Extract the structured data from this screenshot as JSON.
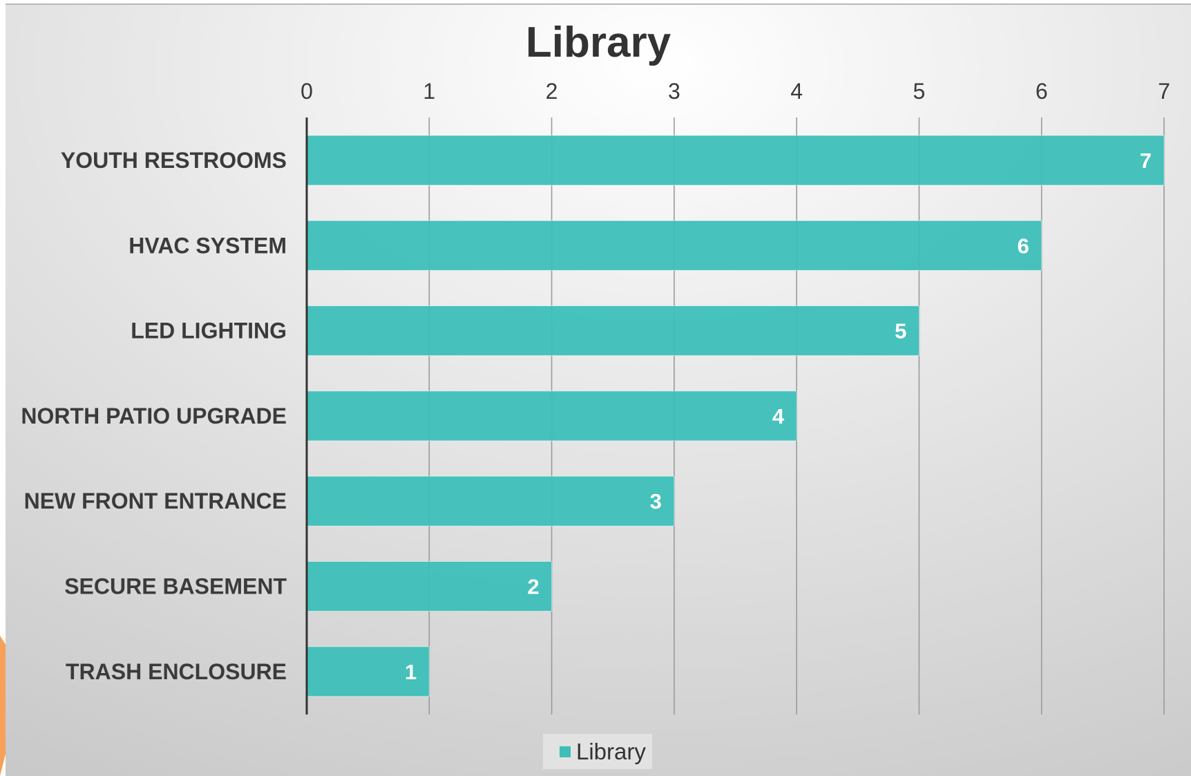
{
  "chart_data": {
    "type": "bar",
    "orientation": "horizontal",
    "title": "Library",
    "categories": [
      "YOUTH RESTROOMS",
      "HVAC SYSTEM",
      "LED LIGHTING",
      "NORTH PATIO UPGRADE",
      "NEW FRONT ENTRANCE",
      "SECURE BASEMENT",
      "TRASH ENCLOSURE"
    ],
    "series": [
      {
        "name": "Library",
        "values": [
          7,
          6,
          5,
          4,
          3,
          2,
          1
        ],
        "color": "#3dbfb8"
      }
    ],
    "xlim": [
      0,
      7
    ],
    "x_ticks": [
      "0",
      "1",
      "2",
      "3",
      "4",
      "5",
      "6",
      "7"
    ],
    "x_axis_position": "top",
    "grid": true,
    "data_labels": true,
    "legend_position": "bottom"
  }
}
